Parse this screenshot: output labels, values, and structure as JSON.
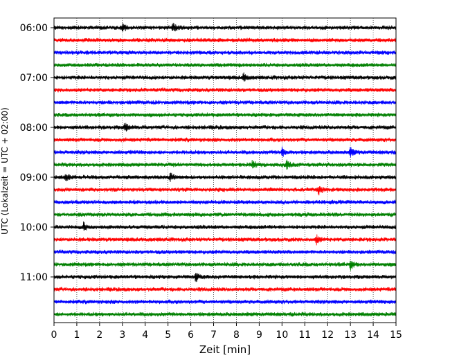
{
  "chart_data": {
    "type": "line",
    "title": "",
    "xlabel": "Zeit  [min]",
    "ylabel": "UTC (Lokalzeit = UTC + 02:00)",
    "xlim": [
      0,
      15
    ],
    "x_ticks": [
      "0",
      "1",
      "2",
      "3",
      "4",
      "5",
      "6",
      "7",
      "8",
      "9",
      "10",
      "11",
      "12",
      "13",
      "14",
      "15"
    ],
    "y_tick_labels": [
      "06:00",
      "07:00",
      "08:00",
      "09:00",
      "10:00",
      "11:00"
    ],
    "trace_interval_min": 15,
    "trace_count": 24,
    "trace_colors": [
      "#000000",
      "#ff0000",
      "#0000ff",
      "#008000"
    ],
    "grid": "vertical-dotted",
    "traces": [
      {
        "start": "06:00",
        "color": "#000000",
        "events": [
          3.0,
          5.2
        ]
      },
      {
        "start": "06:15",
        "color": "#ff0000",
        "events": []
      },
      {
        "start": "06:30",
        "color": "#0000ff",
        "events": []
      },
      {
        "start": "06:45",
        "color": "#008000",
        "events": []
      },
      {
        "start": "07:00",
        "color": "#000000",
        "events": [
          8.3
        ]
      },
      {
        "start": "07:15",
        "color": "#ff0000",
        "events": []
      },
      {
        "start": "07:30",
        "color": "#0000ff",
        "events": []
      },
      {
        "start": "07:45",
        "color": "#008000",
        "events": []
      },
      {
        "start": "08:00",
        "color": "#000000",
        "events": [
          3.1
        ]
      },
      {
        "start": "08:15",
        "color": "#ff0000",
        "events": []
      },
      {
        "start": "08:30",
        "color": "#0000ff",
        "events": [
          10.0,
          13.0
        ]
      },
      {
        "start": "08:45",
        "color": "#008000",
        "events": [
          8.7,
          10.2
        ]
      },
      {
        "start": "09:00",
        "color": "#000000",
        "events": [
          0.5,
          5.1
        ]
      },
      {
        "start": "09:15",
        "color": "#ff0000",
        "events": [
          11.6
        ]
      },
      {
        "start": "09:30",
        "color": "#0000ff",
        "events": []
      },
      {
        "start": "09:45",
        "color": "#008000",
        "events": []
      },
      {
        "start": "10:00",
        "color": "#000000",
        "events": [
          1.3
        ]
      },
      {
        "start": "10:15",
        "color": "#ff0000",
        "events": [
          11.5
        ]
      },
      {
        "start": "10:30",
        "color": "#0000ff",
        "events": []
      },
      {
        "start": "10:45",
        "color": "#008000",
        "events": [
          13.0
        ]
      },
      {
        "start": "11:00",
        "color": "#000000",
        "events": [
          6.2
        ]
      },
      {
        "start": "11:15",
        "color": "#ff0000",
        "events": []
      },
      {
        "start": "11:30",
        "color": "#0000ff",
        "events": []
      },
      {
        "start": "11:45",
        "color": "#008000",
        "events": []
      }
    ]
  }
}
